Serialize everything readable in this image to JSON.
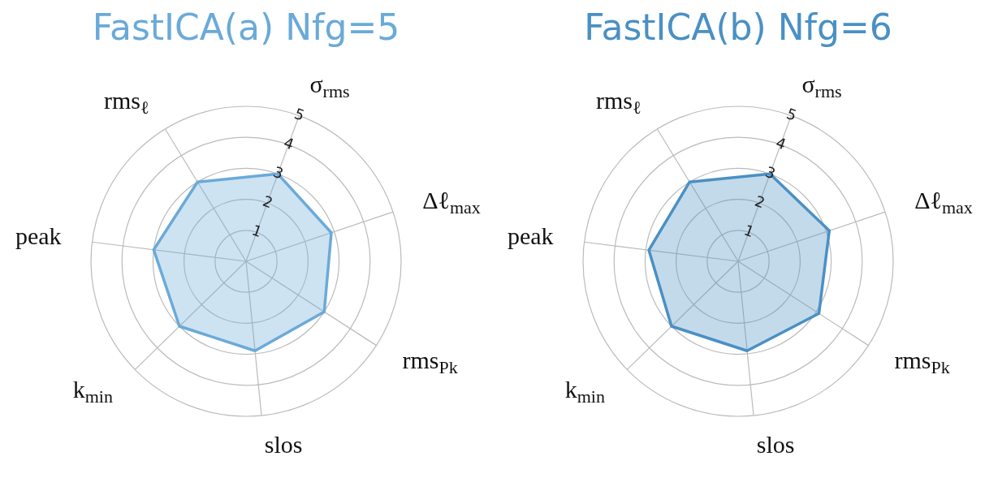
{
  "chart_data": [
    {
      "type": "radar",
      "title": "FastICA(a) Nfg=5",
      "categories": [
        "σ$_{rms}$",
        "Δℓ$_{max}$",
        "rms$_{Pk}$",
        "slos",
        "k$_{min}$",
        "peak",
        "rms$_{ℓ}$"
      ],
      "series": [
        {
          "color": "#6aaad8",
          "values": [
            3.0,
            2.9,
            3.0,
            2.9,
            3.0,
            3.0,
            3.0
          ]
        }
      ],
      "ylim": [
        0,
        5
      ],
      "yticks": [
        1,
        2,
        3,
        4,
        5
      ],
      "grid": true,
      "marker": "none"
    },
    {
      "type": "radar",
      "title": "FastICA(b) Nfg=6",
      "categories": [
        "σ$_{rms}$",
        "Δℓ$_{max}$",
        "rms$_{Pk}$",
        "slos",
        "k$_{min}$",
        "peak",
        "rms$_{ℓ}$"
      ],
      "series": [
        {
          "color": "#4a90c4",
          "values": [
            3.0,
            3.1,
            3.1,
            2.9,
            3.0,
            2.9,
            3.0
          ]
        }
      ],
      "ylim": [
        0,
        5
      ],
      "yticks": [
        1,
        2,
        3,
        4,
        5
      ],
      "grid": true,
      "marker": "none"
    }
  ]
}
